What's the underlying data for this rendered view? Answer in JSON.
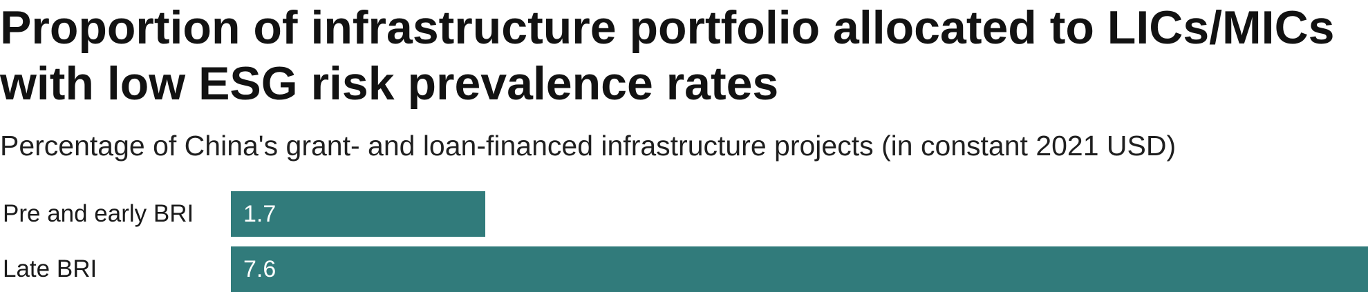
{
  "header": {
    "title_line1": "Proportion of infrastructure portfolio allocated to LICs/MICs",
    "title_line2": "with low ESG risk prevalence rates",
    "subtitle": "Percentage of China's grant- and loan-financed infrastructure projects (in constant 2021 USD)"
  },
  "colors": {
    "bar": "#317b7b",
    "value_text": "#ffffff"
  },
  "chart_data": {
    "type": "bar",
    "orientation": "horizontal",
    "categories": [
      "Pre and early BRI",
      "Late BRI"
    ],
    "values": [
      1.7,
      7.6
    ],
    "value_labels": [
      "1.7",
      "7.6"
    ],
    "title": "Proportion of infrastructure portfolio allocated to LICs/MICs with low ESG risk prevalence rates",
    "subtitle": "Percentage of China's grant- and loan-financed infrastructure projects (in constant 2021 USD)",
    "xlabel": "",
    "ylabel": "",
    "xlim": [
      0,
      7.6
    ],
    "grid": false,
    "legend": "none"
  }
}
